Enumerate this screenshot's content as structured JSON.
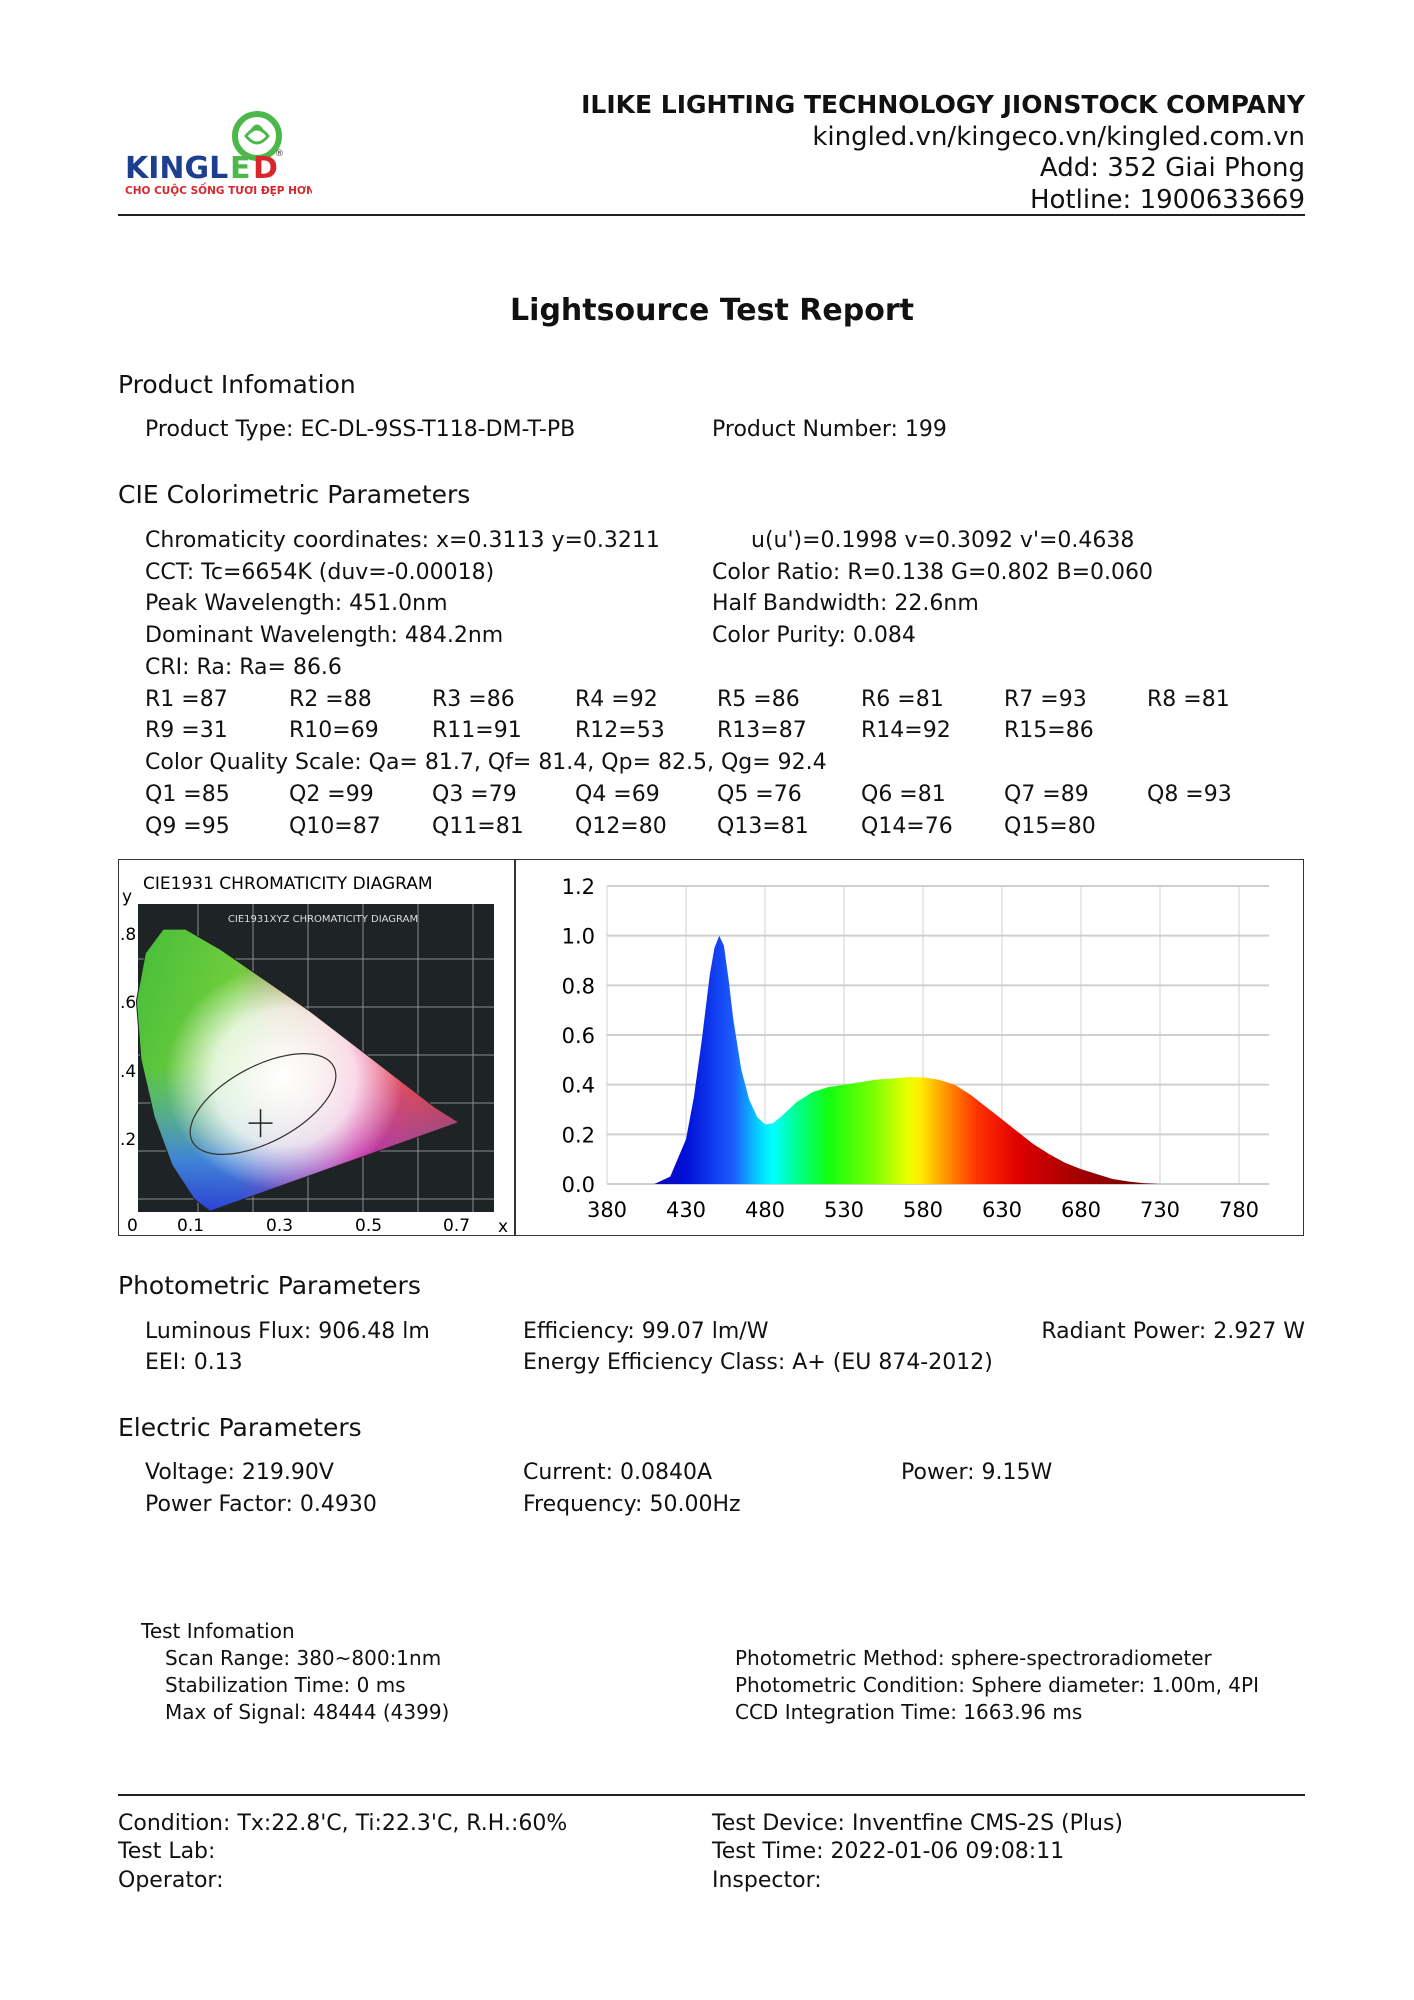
{
  "logo": {
    "brand": "KINGLED",
    "tagline": "CHO CUỘC SỐNG TƯƠI ĐẸP HƠN"
  },
  "header": {
    "company": "ILIKE LIGHTING TECHNOLOGY JIONSTOCK COMPANY",
    "websites": "kingled.vn/kingeco.vn/kingled.com.vn",
    "address": "Add: 352 Giai Phong",
    "hotline": "Hotline: 1900633669"
  },
  "title": "Lightsource Test Report",
  "product": {
    "heading": "Product Infomation",
    "type": "Product Type: EC-DL-9SS-T118-DM-T-PB",
    "number": "Product Number: 199"
  },
  "cie": {
    "heading": "CIE Colorimetric Parameters",
    "chromaticity": "Chromaticity coordinates: x=0.3113 y=0.3211",
    "uv": "u(u')=0.1998 v=0.3092 v'=0.4638",
    "cct": "CCT: Tc=6654K (duv=-0.00018)",
    "color_ratio": "Color Ratio: R=0.138  G=0.802  B=0.060",
    "peak": "Peak Wavelength: 451.0nm",
    "half_bandwidth": "Half Bandwidth: 22.6nm",
    "dominant": "Dominant Wavelength: 484.2nm",
    "purity": "Color Purity: 0.084",
    "cri": "CRI: Ra: Ra= 86.6",
    "r_row1": [
      "R1 =87",
      "R2 =88",
      "R3 =86",
      "R4 =92",
      "R5 =86",
      "R6 =81",
      "R7 =93",
      "R8 =81"
    ],
    "r_row2": [
      "R9 =31",
      "R10=69",
      "R11=91",
      "R12=53",
      "R13=87",
      "R14=92",
      "R15=86"
    ],
    "cqs": "Color Quality Scale: Qa= 81.7, Qf= 81.4, Qp= 82.5, Qg= 92.4",
    "q_row1": [
      "Q1 =85",
      "Q2 =99",
      "Q3 =79",
      "Q4 =69",
      "Q5 =76",
      "Q6 =81",
      "Q7 =89",
      "Q8 =93"
    ],
    "q_row2": [
      "Q9 =95",
      "Q10=87",
      "Q11=81",
      "Q12=80",
      "Q13=81",
      "Q14=76",
      "Q15=80"
    ]
  },
  "cie_diagram": {
    "title": "CIE1931 CHROMATICITY DIAGRAM",
    "inner_title": "CIE1931XYZ CHROMATICITY DIAGRAM",
    "y_label": "y",
    "x_label": "x",
    "y_ticks": [
      ".8",
      ".6",
      ".4",
      ".2"
    ],
    "x_ticks": [
      "0",
      "0.1",
      "0.3",
      "0.5",
      "0.7"
    ],
    "point": {
      "x": 0.3113,
      "y": 0.3211
    }
  },
  "chart_data": {
    "type": "area",
    "title": "",
    "xlabel": "",
    "ylabel": "",
    "xlim": [
      380,
      780
    ],
    "ylim": [
      0,
      1.2
    ],
    "grid": true,
    "x_ticks": [
      380,
      430,
      480,
      530,
      580,
      630,
      680,
      730,
      780
    ],
    "y_ticks": [
      "0.0",
      "0.2",
      "0.4",
      "0.6",
      "0.8",
      "1.0",
      "1.2"
    ],
    "wavelength": [
      410,
      420,
      430,
      435,
      440,
      445,
      448,
      451,
      454,
      457,
      460,
      465,
      470,
      475,
      480,
      485,
      490,
      500,
      510,
      520,
      530,
      540,
      550,
      560,
      570,
      580,
      590,
      600,
      610,
      620,
      630,
      640,
      650,
      660,
      670,
      680,
      690,
      700,
      710,
      720,
      730
    ],
    "values": [
      0,
      0.03,
      0.18,
      0.35,
      0.58,
      0.84,
      0.95,
      1.0,
      0.96,
      0.82,
      0.66,
      0.46,
      0.34,
      0.27,
      0.24,
      0.245,
      0.27,
      0.33,
      0.37,
      0.39,
      0.4,
      0.41,
      0.42,
      0.425,
      0.43,
      0.43,
      0.42,
      0.4,
      0.36,
      0.31,
      0.26,
      0.21,
      0.16,
      0.12,
      0.085,
      0.06,
      0.04,
      0.02,
      0.01,
      0.003,
      0
    ]
  },
  "photometric": {
    "heading": "Photometric Parameters",
    "flux": "Luminous Flux: 906.48 lm",
    "efficiency": "Efficiency: 99.07 lm/W",
    "radiant": "Radiant Power: 2.927 W",
    "eei": "EEI:  0.13",
    "class": "Energy Efficiency Class: A+ (EU 874-2012)"
  },
  "electric": {
    "heading": "Electric Parameters",
    "voltage": "Voltage: 219.90V",
    "current": "Current: 0.0840A",
    "power": "Power: 9.15W",
    "pf": "Power Factor: 0.4930",
    "frequency": "Frequency: 50.00Hz"
  },
  "test_info": {
    "heading": "Test Infomation",
    "scan": "Scan Range: 380~800:1nm",
    "stabilization": "Stabilization Time: 0 ms",
    "max_signal": "Max of Signal: 48444 (4399)",
    "method": "Photometric Method: sphere-spectroradiometer",
    "condition": "Photometric Condition: Sphere diameter: 1.00m, 4PI",
    "ccd": "CCD Integration Time: 1663.96 ms"
  },
  "footer": {
    "condition": "Condition: Tx:22.8'C, Ti:22.3'C, R.H.:60%",
    "lab": "Test Lab:",
    "operator": "Operator:",
    "device": "Test Device: Inventfine CMS-2S (Plus)",
    "time": "Test Time: 2022-01-06 09:08:11",
    "inspector": "Inspector:"
  },
  "colors": {
    "logo_blue": "#1d3f8f",
    "logo_green": "#4cb84a",
    "logo_red": "#d8262c",
    "grid": "#cccccc"
  }
}
